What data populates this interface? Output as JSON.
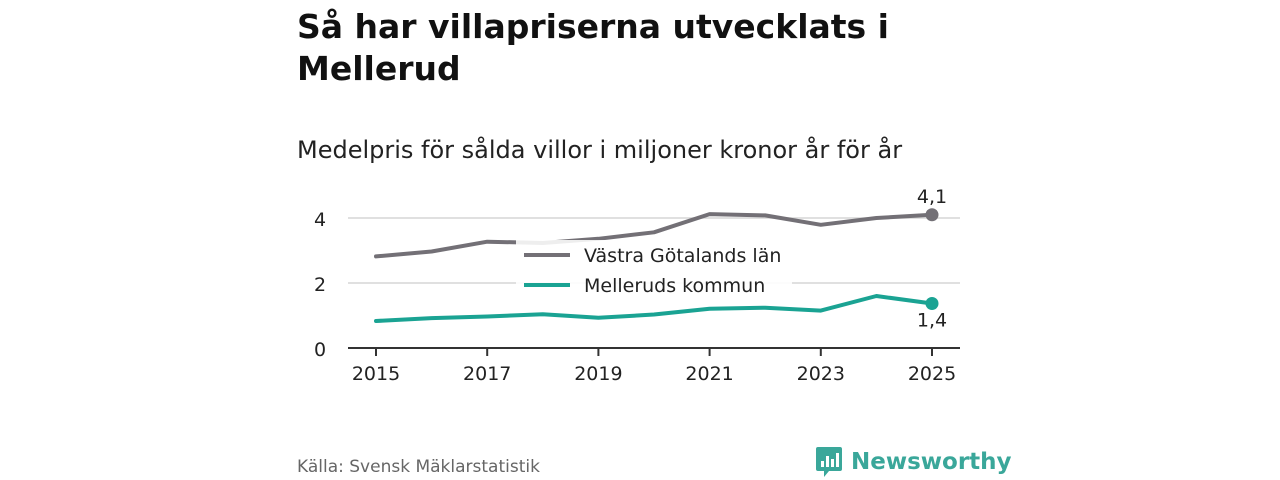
{
  "title": "Så har villapriserna utvecklats i Mellerud",
  "subtitle": "Medelpris för sålda villor i miljoner kronor år för år",
  "source": "Källa: Svensk Mäklarstatistik",
  "brand": {
    "name": "Newsworthy",
    "icon": "newsworthy-logo-icon"
  },
  "colors": {
    "series_1": "#737076",
    "series_2": "#1aa393",
    "grid": "#d6d6d6",
    "axis": "#333333",
    "brand": "#3aa79a"
  },
  "chart_data": {
    "type": "line",
    "title": "Så har villapriserna utvecklats i Mellerud",
    "subtitle": "Medelpris för sålda villor i miljoner kronor år för år",
    "xlabel": "",
    "ylabel": "",
    "x": [
      2015,
      2016,
      2017,
      2018,
      2019,
      2020,
      2021,
      2022,
      2023,
      2024,
      2025
    ],
    "x_ticks": [
      "2015",
      "2017",
      "2019",
      "2021",
      "2023",
      "2025"
    ],
    "y_ticks": [
      "0",
      "2",
      "4"
    ],
    "ylim": [
      0,
      4.5
    ],
    "grid": true,
    "legend": "center",
    "series": [
      {
        "name": "Västra Götalands län",
        "color": "#737076",
        "values": [
          2.82,
          2.97,
          3.27,
          3.23,
          3.36,
          3.56,
          4.12,
          4.08,
          3.79,
          4.0,
          4.1
        ],
        "end_label": "4,1"
      },
      {
        "name": "Melleruds kommun",
        "color": "#1aa393",
        "values": [
          0.83,
          0.92,
          0.97,
          1.04,
          0.93,
          1.03,
          1.21,
          1.24,
          1.15,
          1.6,
          1.37
        ],
        "end_label": "1,4"
      }
    ]
  }
}
